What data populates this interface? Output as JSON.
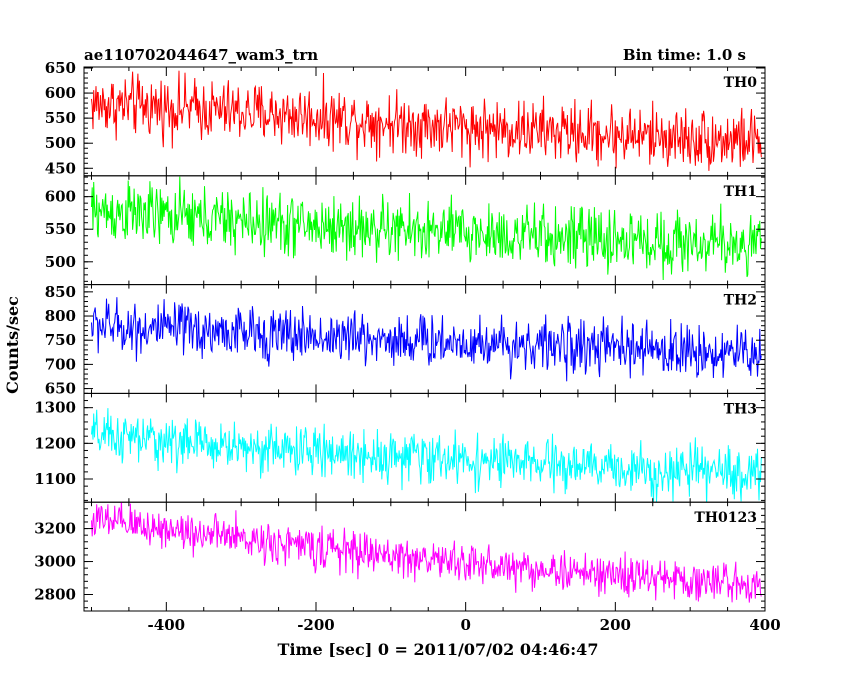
{
  "header": {
    "title": "ae110702044647_wam3_trn",
    "bin_time": "Bin time: 1.0 s"
  },
  "chart_data": {
    "type": "line",
    "title": "ae110702044647_wam3_trn",
    "xlabel": "Time [sec] 0 = 2011/07/02 04:46:47",
    "ylabel": "Counts/sec",
    "xlim": [
      -510,
      400
    ],
    "xticks": [
      -400,
      -200,
      0,
      200,
      400
    ],
    "grid": false,
    "legend": "none",
    "series": [
      {
        "name": "TH0",
        "color": "#ff0000",
        "ylim": [
          435,
          652
        ],
        "yticks": [
          450,
          500,
          550,
          600,
          650
        ],
        "x": [
          -500,
          -400,
          -300,
          -200,
          -100,
          0,
          100,
          200,
          300,
          400
        ],
        "values": [
          578,
          572,
          562,
          553,
          542,
          532,
          524,
          517,
          510,
          505
        ],
        "noise": 42
      },
      {
        "name": "TH1",
        "color": "#00ff00",
        "ylim": [
          465,
          632
        ],
        "yticks": [
          500,
          550,
          600
        ],
        "x": [
          -500,
          -400,
          -300,
          -200,
          -100,
          0,
          100,
          200,
          300,
          400
        ],
        "values": [
          578,
          570,
          562,
          555,
          549,
          544,
          538,
          533,
          529,
          527
        ],
        "noise": 33
      },
      {
        "name": "TH2",
        "color": "#0000ff",
        "ylim": [
          640,
          865
        ],
        "yticks": [
          650,
          700,
          750,
          800,
          850
        ],
        "x": [
          -500,
          -400,
          -300,
          -200,
          -100,
          0,
          100,
          200,
          300,
          400
        ],
        "values": [
          782,
          772,
          765,
          758,
          752,
          746,
          740,
          733,
          727,
          722
        ],
        "noise": 38
      },
      {
        "name": "TH3",
        "color": "#00ffff",
        "ylim": [
          1035,
          1340
        ],
        "yticks": [
          1100,
          1200,
          1300
        ],
        "x": [
          -500,
          -400,
          -300,
          -200,
          -100,
          0,
          100,
          200,
          300,
          400
        ],
        "values": [
          1222,
          1205,
          1190,
          1176,
          1165,
          1153,
          1141,
          1130,
          1120,
          1115
        ],
        "noise": 48
      },
      {
        "name": "TH0123",
        "color": "#ff00ff",
        "ylim": [
          2700,
          3360
        ],
        "yticks": [
          2800,
          3000,
          3200
        ],
        "x": [
          -500,
          -400,
          -300,
          -200,
          -100,
          0,
          100,
          200,
          300,
          400
        ],
        "values": [
          3250,
          3200,
          3140,
          3085,
          3035,
          2990,
          2950,
          2915,
          2885,
          2860
        ],
        "noise": 85
      }
    ]
  }
}
